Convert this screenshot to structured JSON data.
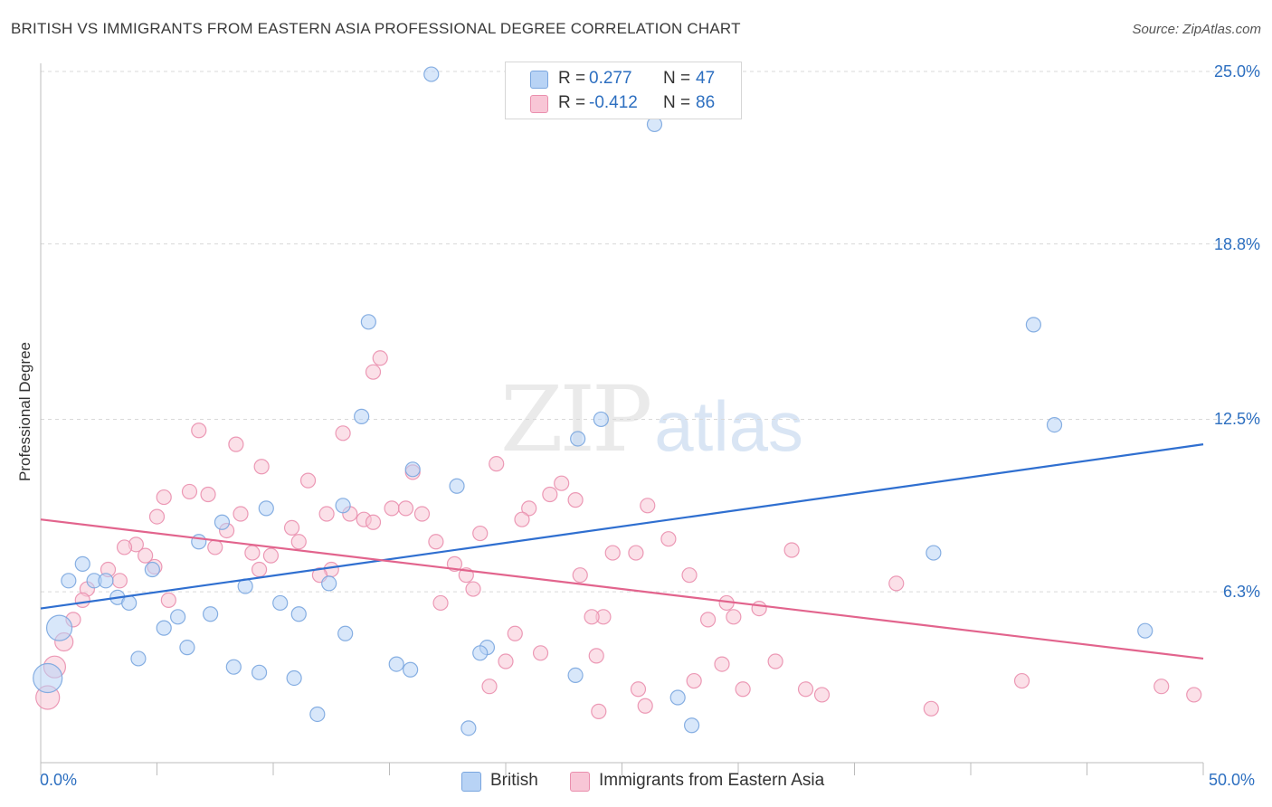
{
  "header": {
    "title": "BRITISH VS IMMIGRANTS FROM EASTERN ASIA PROFESSIONAL DEGREE CORRELATION CHART",
    "source": "Source: ZipAtlas.com"
  },
  "watermark": {
    "zip": "ZIP",
    "atlas": "atlas"
  },
  "legend": {
    "rows": [
      {
        "r_label": "R =",
        "r_value": "0.277",
        "n_label": "N =",
        "n_value": "47",
        "color": "#b8d3f5",
        "border": "#7aa6df"
      },
      {
        "r_label": "R =",
        "r_value": "-0.412",
        "n_label": "N =",
        "n_value": "86",
        "color": "#f8c6d6",
        "border": "#ea8fae"
      }
    ]
  },
  "bottom_legend": {
    "items": [
      {
        "label": "British",
        "color": "#b8d3f5",
        "border": "#7aa6df"
      },
      {
        "label": "Immigrants from Eastern Asia",
        "color": "#f8c6d6",
        "border": "#ea8fae"
      }
    ]
  },
  "chart_data": {
    "type": "scatter",
    "title": "BRITISH VS IMMIGRANTS FROM EASTERN ASIA PROFESSIONAL DEGREE CORRELATION CHART",
    "xlabel": "",
    "ylabel": "Professional Degree",
    "xlim": [
      0,
      50
    ],
    "ylim": [
      0,
      25.5
    ],
    "x_tick_labels": [
      "0.0%",
      "50.0%"
    ],
    "y_ticks": [
      6.3,
      12.5,
      18.8,
      25.0
    ],
    "y_tick_labels": [
      "6.3%",
      "12.5%",
      "18.8%",
      "25.0%"
    ],
    "grid": true,
    "legend_position": "top-center",
    "series": [
      {
        "name": "British",
        "color": "#7aa6df",
        "fill": "#b8d3f5",
        "line_color": "#2f6fd0",
        "trend": {
          "x": [
            0,
            50
          ],
          "y": [
            5.7,
            11.6
          ]
        },
        "points": [
          {
            "x": 16.8,
            "y": 24.9
          },
          {
            "x": 26.4,
            "y": 23.1
          },
          {
            "x": 14.1,
            "y": 16.0
          },
          {
            "x": 42.7,
            "y": 15.9
          },
          {
            "x": 13.8,
            "y": 12.6
          },
          {
            "x": 24.1,
            "y": 12.5
          },
          {
            "x": 43.6,
            "y": 12.3
          },
          {
            "x": 23.1,
            "y": 11.8
          },
          {
            "x": 16.0,
            "y": 10.7
          },
          {
            "x": 17.9,
            "y": 10.1
          },
          {
            "x": 13.0,
            "y": 9.4
          },
          {
            "x": 9.7,
            "y": 9.3
          },
          {
            "x": 7.8,
            "y": 8.8
          },
          {
            "x": 6.8,
            "y": 8.1
          },
          {
            "x": 38.4,
            "y": 7.7
          },
          {
            "x": 1.8,
            "y": 7.3
          },
          {
            "x": 4.8,
            "y": 7.1
          },
          {
            "x": 1.2,
            "y": 6.7
          },
          {
            "x": 2.3,
            "y": 6.7
          },
          {
            "x": 2.8,
            "y": 6.7
          },
          {
            "x": 12.4,
            "y": 6.6
          },
          {
            "x": 8.8,
            "y": 6.5
          },
          {
            "x": 3.3,
            "y": 6.1
          },
          {
            "x": 3.8,
            "y": 5.9
          },
          {
            "x": 10.3,
            "y": 5.9
          },
          {
            "x": 11.1,
            "y": 5.5
          },
          {
            "x": 7.3,
            "y": 5.5
          },
          {
            "x": 5.9,
            "y": 5.4
          },
          {
            "x": 0.8,
            "y": 5.0
          },
          {
            "x": 5.3,
            "y": 5.0
          },
          {
            "x": 47.5,
            "y": 4.9
          },
          {
            "x": 13.1,
            "y": 4.8
          },
          {
            "x": 6.3,
            "y": 4.3
          },
          {
            "x": 19.2,
            "y": 4.3
          },
          {
            "x": 18.9,
            "y": 4.1
          },
          {
            "x": 4.2,
            "y": 3.9
          },
          {
            "x": 15.3,
            "y": 3.7
          },
          {
            "x": 8.3,
            "y": 3.6
          },
          {
            "x": 15.9,
            "y": 3.5
          },
          {
            "x": 9.4,
            "y": 3.4
          },
          {
            "x": 23.0,
            "y": 3.3
          },
          {
            "x": 10.9,
            "y": 3.2
          },
          {
            "x": 0.3,
            "y": 3.2
          },
          {
            "x": 27.4,
            "y": 2.5
          },
          {
            "x": 11.9,
            "y": 1.9
          },
          {
            "x": 18.4,
            "y": 1.4
          },
          {
            "x": 28.0,
            "y": 1.5
          }
        ]
      },
      {
        "name": "Immigrants from Eastern Asia",
        "color": "#ea8fae",
        "fill": "#f8c6d6",
        "line_color": "#e2648d",
        "trend": {
          "x": [
            0,
            50
          ],
          "y": [
            8.9,
            3.9
          ]
        },
        "points": [
          {
            "x": 14.6,
            "y": 14.7
          },
          {
            "x": 14.3,
            "y": 14.2
          },
          {
            "x": 6.8,
            "y": 12.1
          },
          {
            "x": 13.0,
            "y": 12.0
          },
          {
            "x": 8.4,
            "y": 11.6
          },
          {
            "x": 9.5,
            "y": 10.8
          },
          {
            "x": 19.6,
            "y": 10.9
          },
          {
            "x": 16.0,
            "y": 10.6
          },
          {
            "x": 11.5,
            "y": 10.3
          },
          {
            "x": 22.4,
            "y": 10.2
          },
          {
            "x": 6.4,
            "y": 9.9
          },
          {
            "x": 7.2,
            "y": 9.8
          },
          {
            "x": 21.9,
            "y": 9.8
          },
          {
            "x": 5.3,
            "y": 9.7
          },
          {
            "x": 23.0,
            "y": 9.6
          },
          {
            "x": 26.1,
            "y": 9.4
          },
          {
            "x": 21.0,
            "y": 9.3
          },
          {
            "x": 15.1,
            "y": 9.3
          },
          {
            "x": 15.7,
            "y": 9.3
          },
          {
            "x": 8.6,
            "y": 9.1
          },
          {
            "x": 12.3,
            "y": 9.1
          },
          {
            "x": 13.3,
            "y": 9.1
          },
          {
            "x": 16.4,
            "y": 9.1
          },
          {
            "x": 5.0,
            "y": 9.0
          },
          {
            "x": 20.7,
            "y": 8.9
          },
          {
            "x": 13.9,
            "y": 8.9
          },
          {
            "x": 14.3,
            "y": 8.8
          },
          {
            "x": 10.8,
            "y": 8.6
          },
          {
            "x": 8.0,
            "y": 8.5
          },
          {
            "x": 18.9,
            "y": 8.4
          },
          {
            "x": 27.0,
            "y": 8.2
          },
          {
            "x": 11.1,
            "y": 8.1
          },
          {
            "x": 17.0,
            "y": 8.1
          },
          {
            "x": 4.1,
            "y": 8.0
          },
          {
            "x": 7.5,
            "y": 7.9
          },
          {
            "x": 3.6,
            "y": 7.9
          },
          {
            "x": 32.3,
            "y": 7.8
          },
          {
            "x": 9.1,
            "y": 7.7
          },
          {
            "x": 25.6,
            "y": 7.7
          },
          {
            "x": 24.6,
            "y": 7.7
          },
          {
            "x": 4.5,
            "y": 7.6
          },
          {
            "x": 9.9,
            "y": 7.6
          },
          {
            "x": 17.8,
            "y": 7.3
          },
          {
            "x": 4.9,
            "y": 7.2
          },
          {
            "x": 12.5,
            "y": 7.1
          },
          {
            "x": 9.4,
            "y": 7.1
          },
          {
            "x": 2.9,
            "y": 7.1
          },
          {
            "x": 12.0,
            "y": 6.9
          },
          {
            "x": 23.2,
            "y": 6.9
          },
          {
            "x": 18.3,
            "y": 6.9
          },
          {
            "x": 27.9,
            "y": 6.9
          },
          {
            "x": 3.4,
            "y": 6.7
          },
          {
            "x": 36.8,
            "y": 6.6
          },
          {
            "x": 2.0,
            "y": 6.4
          },
          {
            "x": 18.6,
            "y": 6.4
          },
          {
            "x": 1.8,
            "y": 6.0
          },
          {
            "x": 5.5,
            "y": 6.0
          },
          {
            "x": 17.2,
            "y": 5.9
          },
          {
            "x": 29.5,
            "y": 5.9
          },
          {
            "x": 30.9,
            "y": 5.7
          },
          {
            "x": 24.2,
            "y": 5.4
          },
          {
            "x": 23.7,
            "y": 5.4
          },
          {
            "x": 29.8,
            "y": 5.4
          },
          {
            "x": 28.7,
            "y": 5.3
          },
          {
            "x": 1.4,
            "y": 5.3
          },
          {
            "x": 20.4,
            "y": 4.8
          },
          {
            "x": 1.0,
            "y": 4.5
          },
          {
            "x": 21.5,
            "y": 4.1
          },
          {
            "x": 23.9,
            "y": 4.0
          },
          {
            "x": 20.0,
            "y": 3.8
          },
          {
            "x": 31.6,
            "y": 3.8
          },
          {
            "x": 29.3,
            "y": 3.7
          },
          {
            "x": 0.6,
            "y": 3.6
          },
          {
            "x": 28.1,
            "y": 3.1
          },
          {
            "x": 42.2,
            "y": 3.1
          },
          {
            "x": 19.3,
            "y": 2.9
          },
          {
            "x": 30.2,
            "y": 2.8
          },
          {
            "x": 25.7,
            "y": 2.8
          },
          {
            "x": 32.9,
            "y": 2.8
          },
          {
            "x": 48.2,
            "y": 2.9
          },
          {
            "x": 33.6,
            "y": 2.6
          },
          {
            "x": 49.6,
            "y": 2.6
          },
          {
            "x": 0.3,
            "y": 2.5
          },
          {
            "x": 26.0,
            "y": 2.2
          },
          {
            "x": 38.3,
            "y": 2.1
          },
          {
            "x": 24.0,
            "y": 2.0
          }
        ]
      }
    ]
  }
}
